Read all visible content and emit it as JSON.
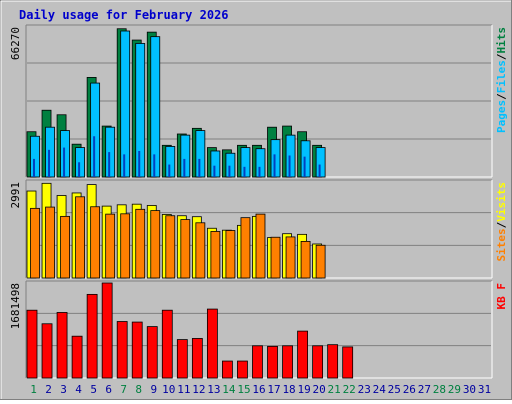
{
  "colors": {
    "frame": "#c0c0c0",
    "panel": "#c0c0c0",
    "title": "#0000cc",
    "hits": "#008040",
    "files": "#00c0ff",
    "pages": "#00c0ff",
    "visits": "#ffff00",
    "sites": "#ff8000",
    "kbytes": "#ff0000",
    "weekday_label": "#0000a0",
    "weekend_label": "#008040"
  },
  "chart_data": {
    "type": "bar",
    "title": "Daily usage for February 2026",
    "days": [
      "1",
      "2",
      "3",
      "4",
      "5",
      "6",
      "7",
      "8",
      "9",
      "10",
      "11",
      "12",
      "13",
      "14",
      "15",
      "16",
      "17",
      "18",
      "19",
      "20",
      "21",
      "22",
      "23",
      "24",
      "25",
      "26",
      "27",
      "28",
      "29",
      "30",
      "31"
    ],
    "weekend_days": [
      1,
      7,
      8,
      14,
      15,
      21,
      22,
      28,
      29
    ],
    "panels": [
      {
        "name": "requests",
        "max_label": "66270",
        "ymax": 66270,
        "side_label": [
          "Pages",
          "/",
          "Files",
          "/",
          "Hits"
        ],
        "series": [
          {
            "name": "Hits",
            "values": [
              20000,
              29500,
              27500,
              14500,
              44000,
              22500,
              65500,
              60500,
              64000,
              14000,
              19000,
              21500,
              13000,
              12000,
              14000,
              14000,
              22000,
              22500,
              20000,
              14000,
              null,
              null,
              null,
              null,
              null,
              null,
              null,
              null,
              null,
              null,
              null
            ]
          },
          {
            "name": "Files",
            "values": [
              18000,
              22000,
              20500,
              13000,
              41500,
              22000,
              64500,
              59000,
              62000,
              13500,
              18500,
              20500,
              11500,
              10500,
              13000,
              12500,
              16500,
              18500,
              16000,
              13000,
              null,
              null,
              null,
              null,
              null,
              null,
              null,
              null,
              null,
              null,
              null
            ]
          },
          {
            "name": "Pages",
            "values": [
              8000,
              12000,
              13000,
              6500,
              18000,
              11000,
              10000,
              11500,
              10000,
              5500,
              8000,
              8000,
              5000,
              5000,
              4500,
              4500,
              10000,
              9500,
              9000,
              5500,
              null,
              null,
              null,
              null,
              null,
              null,
              null,
              null,
              null,
              null,
              null
            ]
          }
        ]
      },
      {
        "name": "visitors",
        "max_label": "2991",
        "ymax": 2991,
        "side_label": [
          "Sites",
          "/",
          "Visits"
        ],
        "series": [
          {
            "name": "Visits",
            "values": [
              2710,
              2950,
              2570,
              2650,
              2910,
              2240,
              2280,
              2300,
              2260,
              1980,
              1940,
              1910,
              1550,
              1490,
              1640,
              1920,
              1260,
              1380,
              1360,
              1060,
              null,
              null,
              null,
              null,
              null,
              null,
              null,
              null,
              null,
              null,
              null
            ]
          },
          {
            "name": "Sites",
            "values": [
              2170,
              2210,
              1920,
              2530,
              2220,
              1990,
              2000,
              2140,
              2100,
              1940,
              1820,
              1720,
              1450,
              1480,
              1880,
              1990,
              1270,
              1280,
              1140,
              1020,
              null,
              null,
              null,
              null,
              null,
              null,
              null,
              null,
              null,
              null,
              null
            ]
          }
        ]
      },
      {
        "name": "volume",
        "max_label": "1681498",
        "ymax": 1681498,
        "side_label": [
          "KB",
          " ",
          "F"
        ],
        "series": [
          {
            "name": "KBytes",
            "values": [
              1200000,
              960000,
              1160000,
              740000,
              1480000,
              1681498,
              1000000,
              990000,
              910000,
              1200000,
              680000,
              700000,
              1220000,
              300000,
              300000,
              570000,
              560000,
              570000,
              830000,
              570000,
              590000,
              550000,
              null,
              null,
              null,
              null,
              null,
              null,
              null,
              null,
              null
            ]
          }
        ]
      }
    ]
  }
}
